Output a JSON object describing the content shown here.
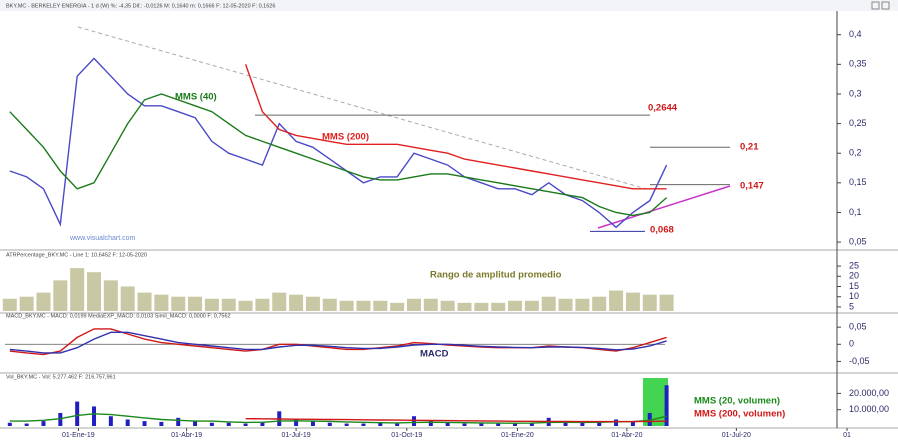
{
  "header": "BKY.MC - BERKELEY ENERGIA - 1 d (W) %: -4,35 Dif.: -0,0126 M: 0,1640 m: 0,1666 F: 12-05-2020 F: 0,1626",
  "watermark": "www.visualchart.com",
  "chart_data": [
    {
      "type": "line",
      "title": "",
      "ylim": [
        0.04,
        0.435
      ],
      "yticks": [
        {
          "value": 0.05,
          "label": "0,05"
        },
        {
          "value": 0.1,
          "label": "0,1"
        },
        {
          "value": 0.15,
          "label": "0,15"
        },
        {
          "value": 0.2,
          "label": "0,2"
        },
        {
          "value": 0.25,
          "label": "0,25"
        },
        {
          "value": 0.3,
          "label": "0,3"
        },
        {
          "value": 0.35,
          "label": "0,35"
        },
        {
          "value": 0.4,
          "label": "0,4"
        }
      ],
      "xlim": [
        "2018-11-01",
        "2020-09-21"
      ],
      "x": [
        "2018-11-05",
        "2018-11-19",
        "2018-12-03",
        "2018-12-17",
        "2018-12-31",
        "2019-01-14",
        "2019-01-28",
        "2019-02-11",
        "2019-02-25",
        "2019-03-11",
        "2019-03-25",
        "2019-04-08",
        "2019-04-22",
        "2019-05-06",
        "2019-05-20",
        "2019-06-03",
        "2019-06-17",
        "2019-07-01",
        "2019-07-15",
        "2019-07-29",
        "2019-08-12",
        "2019-08-26",
        "2019-09-09",
        "2019-09-23",
        "2019-10-07",
        "2019-10-21",
        "2019-11-04",
        "2019-11-18",
        "2019-12-02",
        "2019-12-16",
        "2019-12-30",
        "2020-01-13",
        "2020-01-27",
        "2020-02-10",
        "2020-02-24",
        "2020-03-09",
        "2020-03-23",
        "2020-04-06",
        "2020-04-20",
        "2020-05-04"
      ],
      "series": [
        {
          "type": "line",
          "color": "#4a4ac8",
          "values": [
            0.17,
            0.16,
            0.14,
            0.08,
            0.33,
            0.36,
            0.33,
            0.3,
            0.28,
            0.28,
            0.27,
            0.26,
            0.22,
            0.2,
            0.19,
            0.18,
            0.25,
            0.22,
            0.21,
            0.19,
            0.17,
            0.15,
            0.16,
            0.16,
            0.2,
            0.19,
            0.18,
            0.16,
            0.15,
            0.14,
            0.14,
            0.13,
            0.15,
            0.13,
            0.12,
            0.1,
            0.075,
            0.1,
            0.12,
            0.18
          ]
        },
        {
          "type": "line",
          "name": "MMS (40)",
          "color": "#1a7a1a",
          "values": [
            0.27,
            0.24,
            0.21,
            0.17,
            0.14,
            0.15,
            0.2,
            0.25,
            0.29,
            0.3,
            0.29,
            0.28,
            0.27,
            0.25,
            0.23,
            0.22,
            0.21,
            0.2,
            0.19,
            0.18,
            0.17,
            0.16,
            0.155,
            0.155,
            0.16,
            0.165,
            0.165,
            0.16,
            0.155,
            0.15,
            0.145,
            0.14,
            0.135,
            0.13,
            0.125,
            0.11,
            0.1,
            0.095,
            0.1,
            0.125
          ]
        },
        {
          "type": "line",
          "name": "MMS (200)",
          "color": "#e02020",
          "values": [
            null,
            null,
            null,
            null,
            null,
            null,
            null,
            null,
            null,
            null,
            null,
            null,
            null,
            null,
            0.35,
            0.27,
            0.24,
            0.23,
            0.225,
            0.22,
            0.215,
            0.215,
            0.215,
            0.215,
            0.21,
            0.205,
            0.2,
            0.19,
            0.185,
            0.18,
            0.175,
            0.17,
            0.165,
            0.16,
            0.155,
            0.15,
            0.145,
            0.14,
            0.14,
            0.14
          ]
        }
      ],
      "levels": [
        {
          "value": 0.2644,
          "label": "0,2644"
        },
        {
          "value": 0.21,
          "label": "0,21"
        },
        {
          "value": 0.147,
          "label": "0,147"
        },
        {
          "value": 0.068,
          "label": "0,068"
        }
      ]
    },
    {
      "type": "bar",
      "title": "ATRPercentage_BKY.MC - Line 1: 10,6452 F: 12-05-2020",
      "annotation": "Rango de amplitud promedio",
      "ylim": [
        3,
        27
      ],
      "yticks": [
        5,
        10,
        15,
        20,
        25
      ],
      "xlim": [
        "2018-11-01",
        "2020-09-21"
      ],
      "x": [
        "2018-11-05",
        "2018-11-19",
        "2018-12-03",
        "2018-12-17",
        "2018-12-31",
        "2019-01-14",
        "2019-01-28",
        "2019-02-11",
        "2019-02-25",
        "2019-03-11",
        "2019-03-25",
        "2019-04-08",
        "2019-04-22",
        "2019-05-06",
        "2019-05-20",
        "2019-06-03",
        "2019-06-17",
        "2019-07-01",
        "2019-07-15",
        "2019-07-29",
        "2019-08-12",
        "2019-08-26",
        "2019-09-09",
        "2019-09-23",
        "2019-10-07",
        "2019-10-21",
        "2019-11-04",
        "2019-11-18",
        "2019-12-02",
        "2019-12-16",
        "2019-12-30",
        "2020-01-13",
        "2020-01-27",
        "2020-02-10",
        "2020-02-24",
        "2020-03-09",
        "2020-03-23",
        "2020-04-06",
        "2020-04-20",
        "2020-05-04"
      ],
      "series": [
        {
          "type": "bar",
          "color": "#9a9a5a",
          "values": [
            9,
            10,
            12,
            18,
            24,
            22,
            18,
            15,
            12,
            11,
            10,
            10,
            9,
            9,
            8,
            9,
            12,
            11,
            10,
            9,
            8,
            8,
            8,
            7,
            9,
            9,
            8,
            7,
            7,
            7,
            8,
            8,
            10,
            9,
            9,
            10,
            13,
            12,
            11,
            11
          ]
        }
      ]
    },
    {
      "type": "line",
      "title": "MACD_BKY.MC - MACD: 0,0199 MediaEXP_MACD: 0,0103 Simil_MACD: 0,0000 F: 0,7562",
      "annotation": "MACD",
      "ylim": [
        -0.075,
        0.065
      ],
      "yticks": [
        {
          "value": -0.05,
          "label": "-0,05"
        },
        0,
        {
          "value": 0.05,
          "label": "0,05"
        }
      ],
      "baseline": 0,
      "xlim": [
        "2018-11-01",
        "2020-09-21"
      ],
      "x": [
        "2018-11-05",
        "2018-11-19",
        "2018-12-03",
        "2018-12-17",
        "2018-12-31",
        "2019-01-14",
        "2019-01-28",
        "2019-02-11",
        "2019-02-25",
        "2019-03-11",
        "2019-03-25",
        "2019-04-08",
        "2019-04-22",
        "2019-05-06",
        "2019-05-20",
        "2019-06-03",
        "2019-06-17",
        "2019-07-01",
        "2019-07-15",
        "2019-07-29",
        "2019-08-12",
        "2019-08-26",
        "2019-09-09",
        "2019-09-23",
        "2019-10-07",
        "2019-10-21",
        "2019-11-04",
        "2019-11-18",
        "2019-12-02",
        "2019-12-16",
        "2019-12-30",
        "2020-01-13",
        "2020-01-27",
        "2020-02-10",
        "2020-02-24",
        "2020-03-09",
        "2020-03-23",
        "2020-04-06",
        "2020-04-20",
        "2020-05-04"
      ],
      "series": [
        {
          "type": "line",
          "color": "#d01818",
          "values": [
            -0.02,
            -0.025,
            -0.03,
            -0.02,
            0.02,
            0.045,
            0.045,
            0.03,
            0.015,
            0.005,
            0,
            -0.005,
            -0.01,
            -0.015,
            -0.02,
            -0.015,
            0,
            0,
            -0.005,
            -0.01,
            -0.015,
            -0.015,
            -0.01,
            -0.005,
            0.005,
            0.002,
            -0.002,
            -0.005,
            -0.008,
            -0.01,
            -0.01,
            -0.01,
            -0.005,
            -0.008,
            -0.01,
            -0.015,
            -0.02,
            -0.01,
            0.005,
            0.02
          ]
        },
        {
          "type": "line",
          "color": "#3030b0",
          "values": [
            -0.015,
            -0.02,
            -0.025,
            -0.025,
            -0.01,
            0.015,
            0.035,
            0.035,
            0.025,
            0.015,
            0.005,
            0,
            -0.005,
            -0.01,
            -0.015,
            -0.015,
            -0.008,
            -0.003,
            -0.003,
            -0.006,
            -0.01,
            -0.012,
            -0.012,
            -0.008,
            -0.002,
            0,
            0,
            -0.003,
            -0.006,
            -0.008,
            -0.009,
            -0.01,
            -0.008,
            -0.008,
            -0.009,
            -0.012,
            -0.016,
            -0.014,
            -0.005,
            0.01
          ]
        }
      ]
    },
    {
      "type": "bar",
      "title": "Vol_BKY.MC - Vol: 5.277.462 F: 216.757,961",
      "ylim": [
        0,
        27000
      ],
      "yticks": [
        {
          "value": 10000,
          "label": "10.000,00"
        },
        {
          "value": 20000,
          "label": "20.000,00"
        }
      ],
      "xlim": [
        "2018-11-01",
        "2020-09-21"
      ],
      "xticks": [
        {
          "value": "2019-01-01",
          "label": "01-Ene-19"
        },
        {
          "value": "2019-04-01",
          "label": "01-Abr-19"
        },
        {
          "value": "2019-07-01",
          "label": "01-Jul-19"
        },
        {
          "value": "2019-10-01",
          "label": "01-Oct-19"
        },
        {
          "value": "2020-01-01",
          "label": "01-Ene-20"
        },
        {
          "value": "2020-04-01",
          "label": "01-Abr-20"
        },
        {
          "value": "2020-07-01",
          "label": "01-Jul-20"
        },
        {
          "value": "2020-10-01",
          "label": "01"
        }
      ],
      "x": [
        "2018-11-05",
        "2018-11-19",
        "2018-12-03",
        "2018-12-17",
        "2018-12-31",
        "2019-01-14",
        "2019-01-28",
        "2019-02-11",
        "2019-02-25",
        "2019-03-11",
        "2019-03-25",
        "2019-04-08",
        "2019-04-22",
        "2019-05-06",
        "2019-05-20",
        "2019-06-03",
        "2019-06-17",
        "2019-07-01",
        "2019-07-15",
        "2019-07-29",
        "2019-08-12",
        "2019-08-26",
        "2019-09-09",
        "2019-09-23",
        "2019-10-07",
        "2019-10-21",
        "2019-11-04",
        "2019-11-18",
        "2019-12-02",
        "2019-12-16",
        "2019-12-30",
        "2020-01-13",
        "2020-01-27",
        "2020-02-10",
        "2020-02-24",
        "2020-03-09",
        "2020-03-23",
        "2020-04-06",
        "2020-04-20",
        "2020-05-04"
      ],
      "series": [
        {
          "type": "bar",
          "color": "#2020c0",
          "values": [
            2000,
            1500,
            3000,
            8000,
            15000,
            12000,
            6000,
            4000,
            3000,
            2500,
            5000,
            3000,
            2000,
            2000,
            1500,
            2500,
            9000,
            4000,
            3000,
            2000,
            1500,
            1500,
            2000,
            1500,
            6000,
            3000,
            2000,
            1500,
            1500,
            1500,
            1500,
            2000,
            5000,
            2500,
            2000,
            3000,
            4000,
            2500,
            8000,
            25000
          ]
        },
        {
          "type": "line",
          "name": "MMS (20, volumen)",
          "color": "#1a8a1a",
          "values": [
            3000,
            3000,
            3500,
            4500,
            6500,
            7500,
            7000,
            6000,
            5000,
            4000,
            3500,
            3000,
            3000,
            2500,
            2200,
            2300,
            3000,
            3200,
            3000,
            2800,
            2500,
            2300,
            2000,
            1900,
            2200,
            2300,
            2200,
            2000,
            1900,
            1800,
            1700,
            1800,
            2200,
            2300,
            2200,
            2300,
            2600,
            2700,
            3500,
            6000
          ]
        },
        {
          "type": "line",
          "name": "MMS (200, volumen)",
          "color": "#d01818",
          "values": [
            null,
            null,
            null,
            null,
            null,
            null,
            null,
            null,
            null,
            null,
            null,
            null,
            null,
            null,
            4500,
            4400,
            4300,
            4200,
            4100,
            4000,
            3900,
            3800,
            3700,
            3600,
            3500,
            3400,
            3300,
            3200,
            3100,
            3000,
            2900,
            2900,
            2800,
            2800,
            2700,
            2700,
            2700,
            2700,
            2800,
            3000
          ]
        }
      ]
    }
  ]
}
